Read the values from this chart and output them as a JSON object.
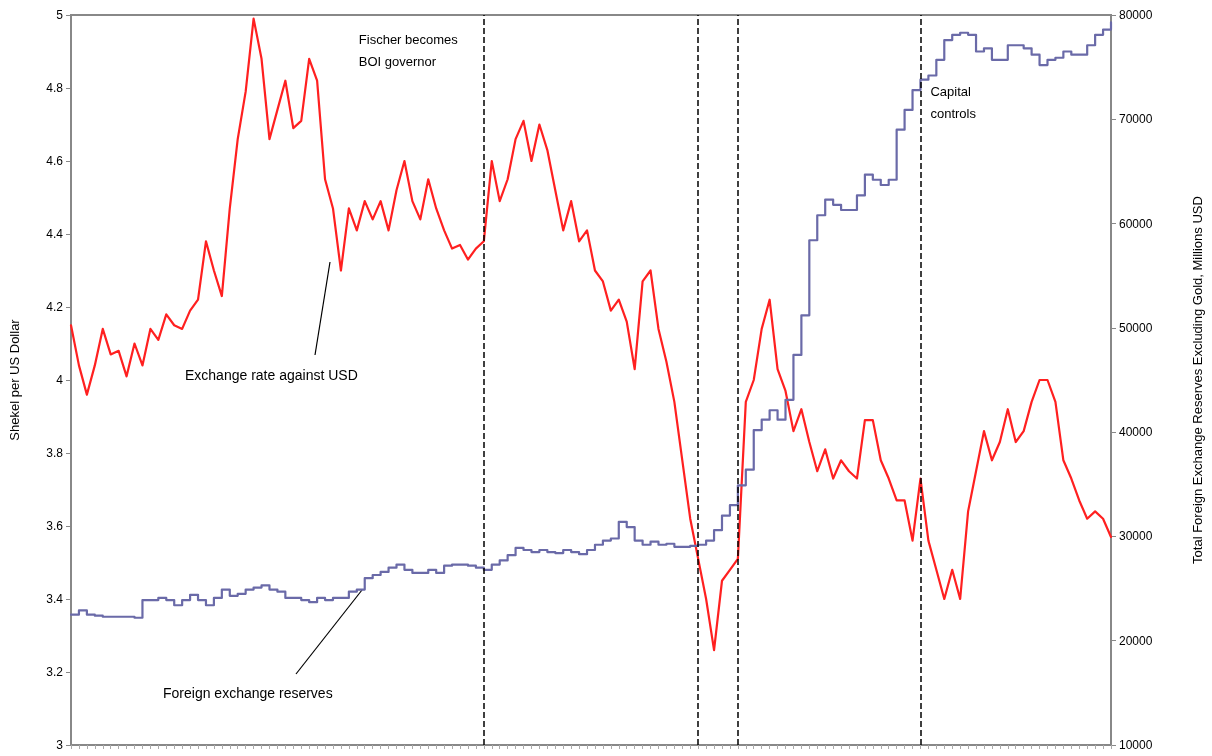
{
  "chart_data": {
    "type": "line",
    "ylabel": "Shekel per US Dollar",
    "y2label": "Total Foreign Exchange Reserves Excluding Gold, Millions USD",
    "categories": [
      null,
      null,
      null,
      null,
      null,
      null,
      null,
      null,
      null,
      null,
      null,
      null,
      null,
      null,
      null,
      null,
      null,
      null,
      null,
      null,
      null,
      null,
      null,
      null,
      null,
      null,
      null,
      null,
      null,
      null,
      null,
      null,
      null,
      null,
      null,
      null,
      null,
      null,
      null,
      null,
      null,
      null,
      null,
      null,
      null,
      null,
      null,
      null,
      null,
      null,
      null,
      null,
      null,
      null,
      null,
      null,
      null,
      null,
      null,
      null,
      null,
      null,
      null,
      null,
      null,
      null,
      null,
      null,
      null,
      null,
      null,
      null,
      null,
      null,
      null,
      null,
      null,
      null,
      null,
      null,
      null,
      null,
      null,
      null,
      null,
      null,
      null,
      null,
      null,
      null,
      null,
      null,
      null,
      null,
      null,
      null,
      null,
      null,
      null,
      null,
      null,
      null,
      null,
      null,
      null,
      null,
      null,
      null,
      null,
      null,
      null,
      null,
      null,
      null,
      null,
      null,
      null,
      null,
      null,
      null,
      null,
      null,
      null,
      null,
      null,
      null,
      null,
      null,
      null,
      null,
      null,
      null
    ],
    "series": [
      {
        "name": "Exchange rate against USD",
        "color": "#ff2020",
        "values": [
          4.15,
          4.04,
          3.96,
          4.04,
          4.14,
          4.07,
          4.08,
          4.01,
          4.1,
          4.04,
          4.14,
          4.11,
          4.18,
          4.15,
          4.14,
          4.19,
          4.22,
          4.38,
          4.3,
          4.23,
          4.47,
          4.66,
          4.79,
          4.99,
          4.88,
          4.66,
          4.74,
          4.82,
          4.69,
          4.71,
          4.88,
          4.82,
          4.55,
          4.47,
          4.3,
          4.47,
          4.41,
          4.49,
          4.44,
          4.49,
          4.41,
          4.52,
          4.6,
          4.49,
          4.44,
          4.55,
          4.47,
          4.41,
          4.36,
          4.37,
          4.33,
          4.36,
          4.38,
          4.6,
          4.49,
          4.55,
          4.66,
          4.71,
          4.6,
          4.7,
          4.63,
          4.52,
          4.41,
          4.49,
          4.38,
          4.41,
          4.3,
          4.27,
          4.19,
          4.22,
          4.16,
          4.03,
          4.27,
          4.3,
          4.14,
          4.05,
          3.94,
          3.78,
          3.62,
          3.51,
          3.4,
          3.26,
          3.45,
          3.48,
          3.51,
          3.94,
          4.0,
          4.14,
          4.22,
          4.03,
          3.97,
          3.86,
          3.92,
          3.83,
          3.75,
          3.81,
          3.73,
          3.78,
          3.75,
          3.73,
          3.89,
          3.89,
          3.78,
          3.73,
          3.67,
          3.67,
          3.56,
          3.73,
          3.56,
          3.48,
          3.4,
          3.48,
          3.4,
          3.64,
          3.75,
          3.86,
          3.78,
          3.83,
          3.92,
          3.83,
          3.86,
          3.94,
          4.0,
          4.0,
          3.94,
          3.78,
          3.73,
          3.67,
          3.62,
          3.64,
          3.62,
          3.57
        ]
      },
      {
        "name": "Foreign exchange reserves",
        "type": "step",
        "axis": "y2",
        "color": "#6a6aa8",
        "values": [
          22500,
          22900,
          22500,
          22400,
          22300,
          22300,
          22300,
          22300,
          22200,
          23900,
          23900,
          24100,
          23900,
          23400,
          23900,
          24400,
          23900,
          23400,
          24100,
          24900,
          24300,
          24500,
          24900,
          25100,
          25300,
          24900,
          24700,
          24100,
          24100,
          23900,
          23700,
          24100,
          23900,
          24100,
          24100,
          24700,
          24900,
          26000,
          26300,
          26600,
          27000,
          27300,
          26800,
          26500,
          26500,
          26800,
          26500,
          27200,
          27300,
          27300,
          27200,
          27000,
          26800,
          27300,
          27700,
          28200,
          28900,
          28700,
          28500,
          28700,
          28500,
          28400,
          28700,
          28500,
          28300,
          28700,
          29200,
          29600,
          29800,
          31400,
          30900,
          29600,
          29200,
          29500,
          29200,
          29300,
          29000,
          29000,
          29100,
          29200,
          29600,
          30600,
          32000,
          33000,
          34900,
          36400,
          40200,
          41200,
          42100,
          41200,
          43100,
          47400,
          51200,
          58400,
          60800,
          62300,
          61800,
          61300,
          61300,
          62700,
          64700,
          64200,
          63700,
          64200,
          69000,
          70900,
          72800,
          73800,
          74200,
          75700,
          77600,
          78100,
          78300,
          78100,
          76500,
          76800,
          75700,
          75700,
          77100,
          77100,
          76800,
          76200,
          75200,
          75700,
          75900,
          76500,
          76200,
          76200,
          77100,
          78100,
          78600,
          79300
        ]
      }
    ],
    "ylim": [
      3,
      5
    ],
    "yticks": [
      3,
      3.2,
      3.4,
      3.6,
      3.8,
      4,
      4.2,
      4.4,
      4.6,
      4.8,
      5
    ],
    "y2lim": [
      10000,
      80000
    ],
    "y2ticks": [
      10000,
      20000,
      30000,
      40000,
      50000,
      60000,
      70000,
      80000
    ],
    "annotations": [
      "Fischer becomes\nBOI governor",
      "Capital\ncontrols"
    ],
    "marker": "none",
    "grid": false,
    "legend": false,
    "tick_labels": "y"
  }
}
